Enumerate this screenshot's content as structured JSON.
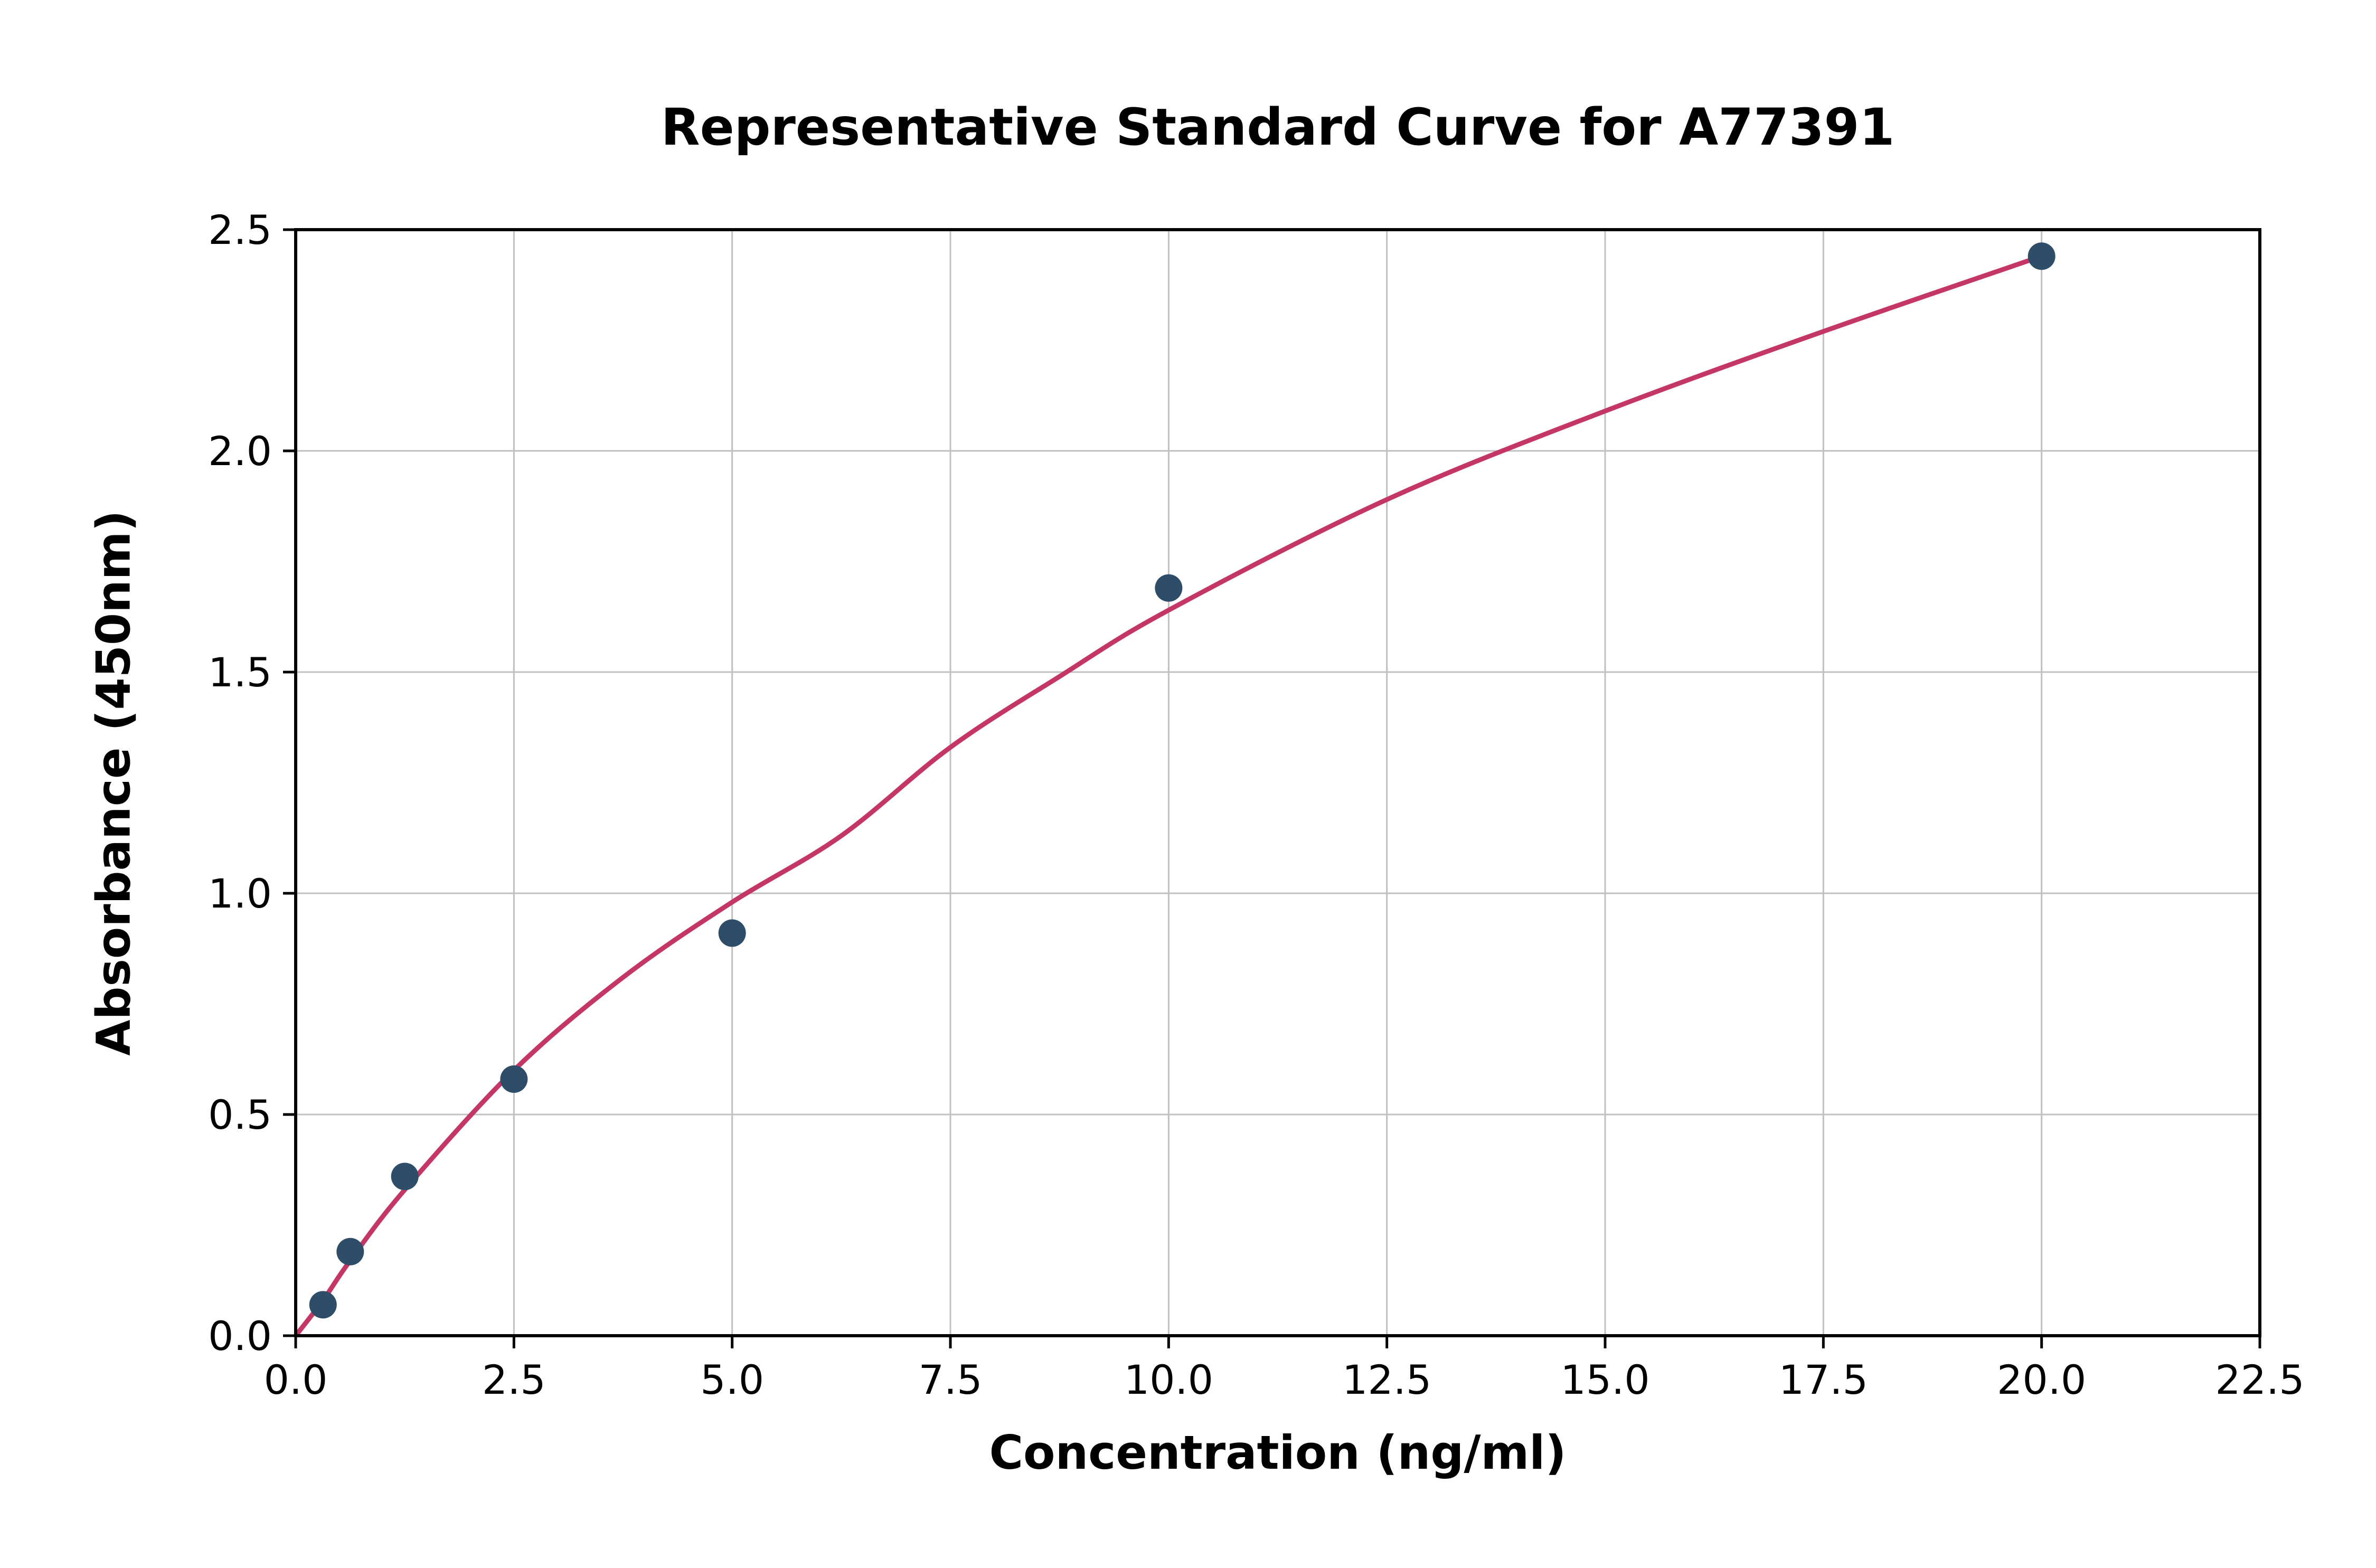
{
  "figure": {
    "title": "Representative Standard Curve for A77391",
    "xlabel": "Concentration (ng/ml)",
    "ylabel": "Absorbance (450nm)"
  },
  "chart_data": {
    "type": "scatter",
    "title": "Representative Standard Curve for A77391",
    "xlabel": "Concentration (ng/ml)",
    "ylabel": "Absorbance (450nm)",
    "xlim": [
      0,
      22.5
    ],
    "ylim": [
      0,
      2.5
    ],
    "x_ticks": [
      0.0,
      2.5,
      5.0,
      7.5,
      10.0,
      12.5,
      15.0,
      17.5,
      20.0,
      22.5
    ],
    "y_ticks": [
      0.0,
      0.5,
      1.0,
      1.5,
      2.0,
      2.5
    ],
    "grid": true,
    "legend": "none",
    "colors": {
      "point_color": "#2e4d68",
      "curve_color": "#c43665",
      "grid_color": "#c0c0c0",
      "axis_color": "#000000",
      "background": "#ffffff"
    },
    "series": [
      {
        "name": "standard-points",
        "type": "scatter",
        "color": "#2e4d68",
        "points": [
          [
            0.313,
            0.07
          ],
          [
            0.625,
            0.19
          ],
          [
            1.25,
            0.36
          ],
          [
            2.5,
            0.58
          ],
          [
            5.0,
            0.91
          ],
          [
            10.0,
            1.69
          ],
          [
            20.0,
            2.44
          ]
        ]
      },
      {
        "name": "fit-curve",
        "type": "line",
        "color": "#c43665",
        "points": [
          [
            0.0,
            0.0
          ],
          [
            0.313,
            0.08
          ],
          [
            0.625,
            0.17
          ],
          [
            1.25,
            0.33
          ],
          [
            2.5,
            0.6
          ],
          [
            3.75,
            0.81
          ],
          [
            5.0,
            0.98
          ],
          [
            6.25,
            1.13
          ],
          [
            7.5,
            1.33
          ],
          [
            8.75,
            1.49
          ],
          [
            10.0,
            1.64
          ],
          [
            12.5,
            1.89
          ],
          [
            15.0,
            2.09
          ],
          [
            17.5,
            2.27
          ],
          [
            20.0,
            2.44
          ]
        ]
      }
    ]
  }
}
